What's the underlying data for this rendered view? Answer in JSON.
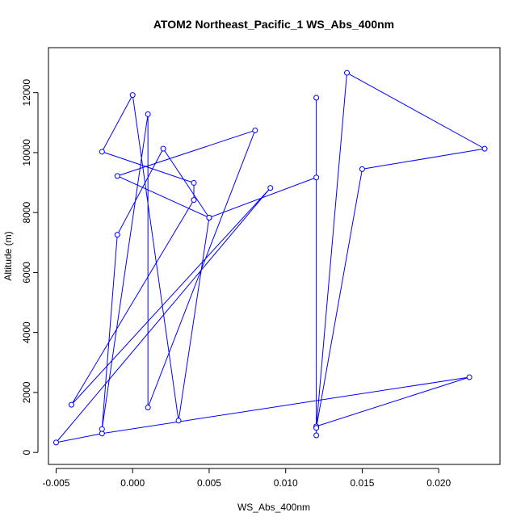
{
  "chart_data": {
    "type": "line",
    "title": "ATOM2 Northeast_Pacific_1 WS_Abs_400nm",
    "xlabel": "WS_Abs_400nm",
    "ylabel": "Altitude (m)",
    "xlim": [
      -0.0055,
      0.024
    ],
    "ylim": [
      -400,
      13500
    ],
    "x_ticks": [
      -0.005,
      0.0,
      0.005,
      0.01,
      0.015,
      0.02
    ],
    "x_tick_labels": [
      "-0.005",
      "0.000",
      "0.005",
      "0.010",
      "0.015",
      "0.020"
    ],
    "y_ticks": [
      0,
      2000,
      4000,
      6000,
      8000,
      10000,
      12000
    ],
    "y_tick_labels": [
      "0",
      "2000",
      "4000",
      "6000",
      "8000",
      "10000",
      "12000"
    ],
    "grid": false,
    "markers": "open-circle",
    "color": "#0000ff",
    "series": [
      {
        "x": [
          0.012,
          0.012,
          0.022,
          -0.002,
          -0.005,
          0.009,
          -0.004,
          0.004,
          0.004,
          -0.002,
          0.0,
          0.003,
          0.005,
          0.002,
          -0.001,
          -0.002,
          0.001,
          0.001,
          0.008,
          -0.001,
          0.005,
          0.012,
          0.012,
          0.012,
          0.014,
          0.023,
          0.015,
          0.012
        ],
        "y": [
          570,
          870,
          2510,
          630,
          330,
          8820,
          1590,
          8420,
          8990,
          10030,
          11920,
          1060,
          7830,
          10130,
          7260,
          780,
          11280,
          1500,
          10740,
          9220,
          7830,
          9170,
          11830,
          820,
          12660,
          10130,
          9450,
          820
        ]
      }
    ]
  }
}
